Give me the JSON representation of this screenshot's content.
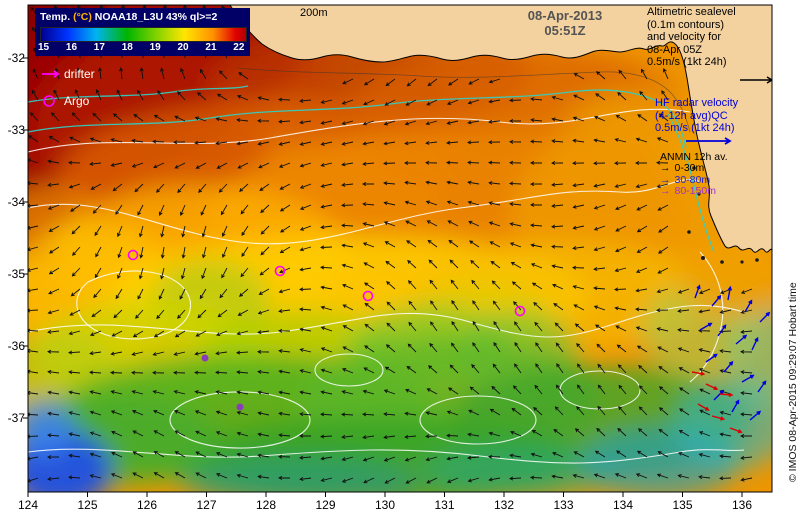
{
  "colorbar": {
    "title_temp": "Temp.",
    "title_units": "(°C)",
    "title_source": "NOAA18_L3U 43% ql>=2",
    "ticks": [
      "15",
      "16",
      "17",
      "18",
      "19",
      "20",
      "21",
      "22"
    ]
  },
  "symbols": {
    "drifter_label": "drifter",
    "argo_label": "Argo"
  },
  "contour_label": "200m",
  "timestamp": {
    "date": "08-Apr-2013",
    "time": "05:51Z"
  },
  "annotations": {
    "altimetric_lines": [
      "Altimetric sealevel",
      "(0.1m contours)",
      "and velocity for",
      "08-Apr 05Z",
      "0.5m/s (1kt 24h)"
    ],
    "hf_radar_lines": [
      "HF radar velocity",
      "(4-12h avg)QC",
      "0.5m/s (1kt 24h)"
    ],
    "anmn_title": "ANMN 12h av.",
    "anmn_items": [
      {
        "label": "0-30m",
        "color": "#000000"
      },
      {
        "label": "30-80m",
        "color": "#2020cc"
      },
      {
        "label": "80-150m",
        "color": "#9933cc"
      }
    ]
  },
  "watermark": "© IMOS 08-Apr-2015 09:29:07 Hobart time",
  "axes": {
    "lat_labels": [
      "-32",
      "-33",
      "-34",
      "-35",
      "-36",
      "-37"
    ],
    "lon_labels": [
      "124",
      "125",
      "126",
      "127",
      "128",
      "129",
      "130",
      "131",
      "132",
      "133",
      "134",
      "135",
      "136"
    ]
  },
  "colors": {
    "panel_bg": "#000066",
    "land": "#f3d2a0",
    "magenta": "#ff00ff",
    "hf_blue": "#0000dd",
    "hf_red": "#dd0000",
    "contour_cyan": "#2fd2c8"
  }
}
